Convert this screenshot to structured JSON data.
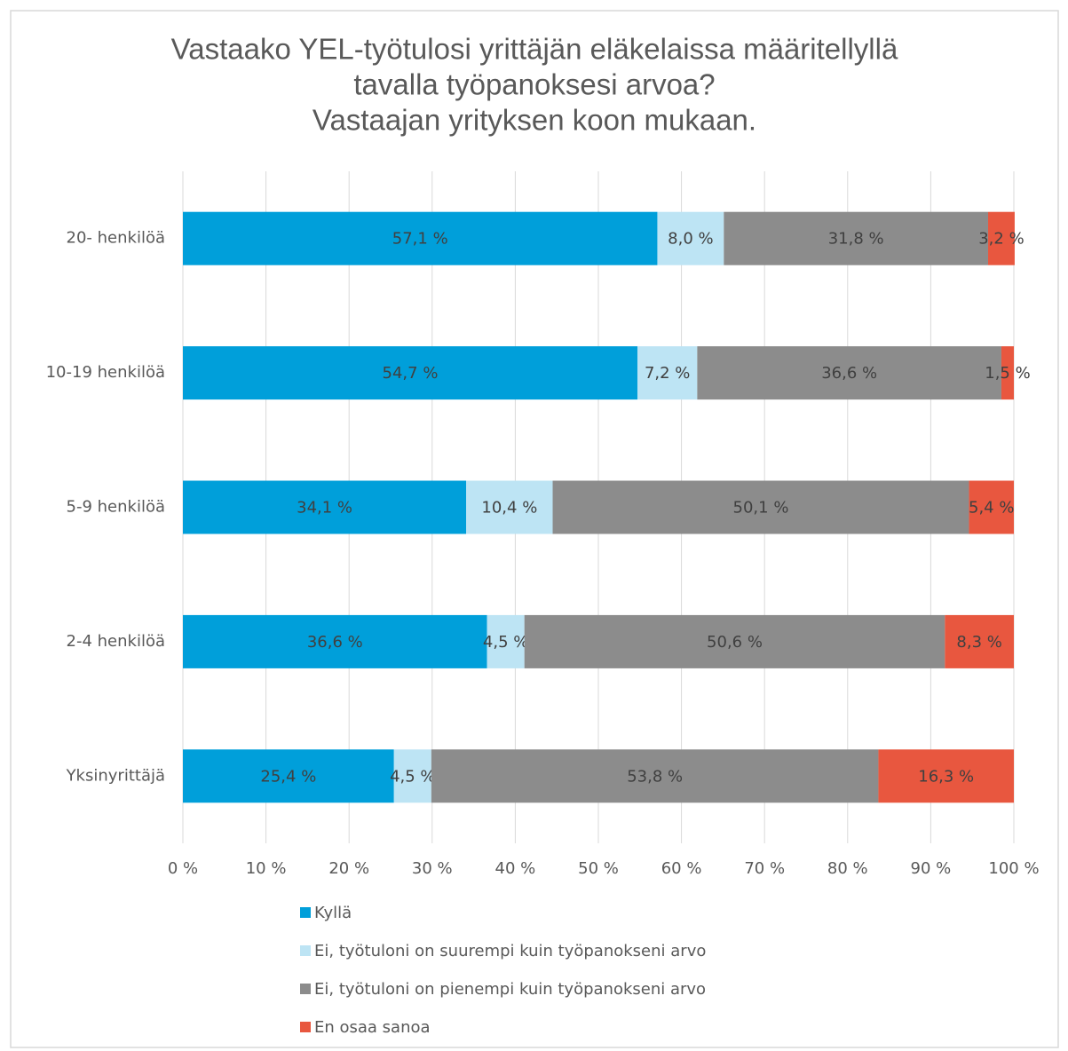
{
  "chart_data": {
    "type": "stacked_bar",
    "orientation": "horizontal",
    "title": [
      "Vastaako YEL-työtulosi yrittäjän eläkelaissa määritellyllä",
      "tavalla työpanoksesi arvoa?",
      "Vastaajan yrityksen koon mukaan."
    ],
    "categories": [
      "20- henkilöä",
      "10-19 henkilöä",
      "5-9 henkilöä",
      "2-4 henkilöä",
      "Yksinyrittäjä"
    ],
    "series": [
      {
        "name": "Kyllä",
        "color": "#009fda",
        "values": [
          57.1,
          54.7,
          34.1,
          36.6,
          25.4
        ],
        "value_labels": [
          "57,1 %",
          "54,7 %",
          "34,1 %",
          "36,6 %",
          "25,4 %"
        ]
      },
      {
        "name": "Ei, työtuloni on suurempi kuin työpanokseni arvo",
        "color": "#bde4f4",
        "values": [
          8.0,
          7.2,
          10.4,
          4.5,
          4.5
        ],
        "value_labels": [
          "8,0 %",
          "7,2 %",
          "10,4 %",
          "4,5 %",
          "4,5 %"
        ]
      },
      {
        "name": "Ei, työtuloni on pienempi kuin työpanokseni arvo",
        "color": "#8c8c8c",
        "values": [
          31.8,
          36.6,
          50.1,
          50.6,
          53.8
        ],
        "value_labels": [
          "31,8 %",
          "36,6 %",
          "50,1 %",
          "50,6 %",
          "53,8 %"
        ]
      },
      {
        "name": "En osaa sanoa",
        "color": "#e8573f",
        "values": [
          3.2,
          1.5,
          5.4,
          8.3,
          16.3
        ],
        "value_labels": [
          "3,2 %",
          "1,5 %",
          "5,4 %",
          "8,3 %",
          "16,3 %"
        ]
      }
    ],
    "xlim": [
      0,
      100
    ],
    "xticks": [
      {
        "value": 0,
        "label": "0 %"
      },
      {
        "value": 10,
        "label": "10 %"
      },
      {
        "value": 20,
        "label": "20 %"
      },
      {
        "value": 30,
        "label": "30 %"
      },
      {
        "value": 40,
        "label": "40 %"
      },
      {
        "value": 50,
        "label": "50 %"
      },
      {
        "value": 60,
        "label": "60 %"
      },
      {
        "value": 70,
        "label": "70 %"
      },
      {
        "value": 80,
        "label": "80 %"
      },
      {
        "value": 90,
        "label": "90 %"
      },
      {
        "value": 100,
        "label": "100 %"
      }
    ],
    "grid": true,
    "legend": "bottom"
  }
}
